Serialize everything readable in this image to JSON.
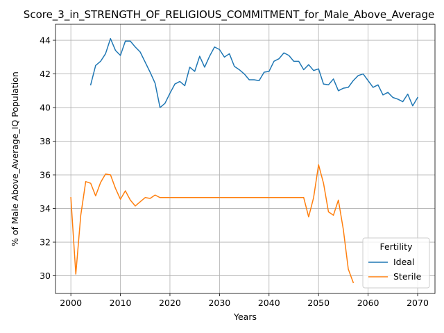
{
  "chart_data": {
    "type": "line",
    "title": "Score_3_in_STRENGTH_OF_RELIGIOUS_COMMITMENT_for_Male_Above_Average",
    "xlabel": "Years",
    "ylabel": "% of Male Above_Average_IQ Population",
    "xlim": [
      1996.9,
      2073.5
    ],
    "ylim": [
      28.95,
      44.95
    ],
    "xticks": [
      2000,
      2010,
      2020,
      2030,
      2040,
      2050,
      2060,
      2070
    ],
    "yticks": [
      30,
      32,
      34,
      36,
      38,
      40,
      42,
      44
    ],
    "grid": true,
    "legend": {
      "title": "Fertility",
      "placement": "lower right"
    },
    "series": [
      {
        "name": "Ideal",
        "color": "#1f77b4",
        "x": [
          2004,
          2005,
          2006,
          2007,
          2008,
          2009,
          2010,
          2011,
          2012,
          2013,
          2014,
          2015,
          2016,
          2017,
          2018,
          2019,
          2020,
          2021,
          2022,
          2023,
          2024,
          2025,
          2026,
          2027,
          2028,
          2029,
          2030,
          2031,
          2032,
          2033,
          2034,
          2035,
          2036,
          2037,
          2038,
          2039,
          2040,
          2041,
          2042,
          2043,
          2044,
          2045,
          2046,
          2047,
          2048,
          2049,
          2050,
          2051,
          2052,
          2053,
          2054,
          2055,
          2056,
          2057,
          2058,
          2059,
          2060,
          2061,
          2062,
          2063,
          2064,
          2065,
          2066,
          2067,
          2068,
          2069,
          2070
        ],
        "y": [
          41.35,
          42.5,
          42.75,
          43.2,
          44.1,
          43.4,
          43.1,
          43.95,
          43.95,
          43.6,
          43.3,
          42.7,
          42.1,
          41.45,
          40.0,
          40.25,
          40.85,
          41.4,
          41.55,
          41.3,
          42.4,
          42.15,
          43.05,
          42.4,
          43.05,
          43.6,
          43.45,
          43.0,
          43.2,
          42.45,
          42.25,
          42.0,
          41.65,
          41.65,
          41.6,
          42.1,
          42.15,
          42.75,
          42.9,
          43.25,
          43.1,
          42.75,
          42.75,
          42.25,
          42.55,
          42.2,
          42.3,
          41.4,
          41.35,
          41.7,
          41.0,
          41.15,
          41.2,
          41.6,
          41.9,
          42.0,
          41.6,
          41.2,
          41.35,
          40.75,
          40.9,
          40.6,
          40.5,
          40.35,
          40.8,
          40.1,
          40.6
        ]
      },
      {
        "name": "Sterile",
        "color": "#ff7f0e",
        "x": [
          2000,
          2001,
          2002,
          2003,
          2004,
          2005,
          2006,
          2007,
          2008,
          2009,
          2010,
          2011,
          2012,
          2013,
          2014,
          2015,
          2016,
          2017,
          2018,
          2019,
          2020,
          2021,
          2022,
          2023,
          2024,
          2025,
          2026,
          2027,
          2028,
          2029,
          2030,
          2031,
          2032,
          2033,
          2034,
          2035,
          2036,
          2037,
          2038,
          2039,
          2040,
          2041,
          2042,
          2043,
          2044,
          2045,
          2046,
          2047,
          2048,
          2049,
          2050,
          2051,
          2052,
          2053,
          2054,
          2055,
          2056,
          2057
        ],
        "y": [
          34.65,
          30.1,
          33.6,
          35.6,
          35.5,
          34.75,
          35.55,
          36.05,
          36.0,
          35.2,
          34.55,
          35.05,
          34.5,
          34.15,
          34.4,
          34.65,
          34.6,
          34.8,
          34.65,
          34.65,
          34.65,
          34.65,
          34.65,
          34.65,
          34.65,
          34.65,
          34.65,
          34.65,
          34.65,
          34.65,
          34.65,
          34.65,
          34.65,
          34.65,
          34.65,
          34.65,
          34.65,
          34.65,
          34.65,
          34.65,
          34.65,
          34.65,
          34.65,
          34.65,
          34.65,
          34.65,
          34.65,
          34.65,
          33.5,
          34.65,
          36.6,
          35.5,
          33.8,
          33.6,
          34.5,
          32.75,
          30.4,
          29.6
        ]
      }
    ]
  }
}
